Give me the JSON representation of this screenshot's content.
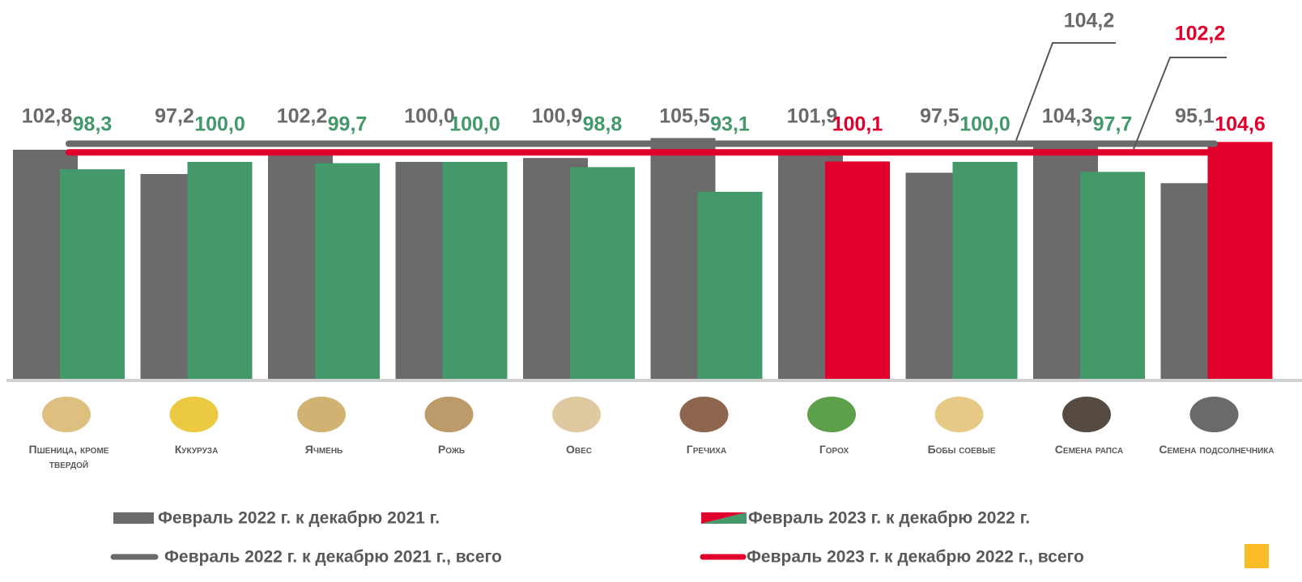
{
  "chart_data": {
    "type": "bar",
    "categories": [
      "Пшеница, кроме твердой",
      "Кукуруза",
      "Ячмень",
      "Рожь",
      "Овес",
      "Гречиха",
      "Горох",
      "Бобы соевые",
      "Семена рапса",
      "Семена подсолнечника"
    ],
    "series": [
      {
        "name": "Февраль 2022 г. к декабрю 2021 г.",
        "color": "#6b6b6b",
        "values": [
          102.8,
          97.2,
          102.2,
          100.0,
          100.9,
          105.5,
          101.9,
          97.5,
          104.3,
          95.1
        ],
        "value_labels": [
          "102,8",
          "97,2",
          "102,2",
          "100,0",
          "100,9",
          "105,5",
          "101,9",
          "97,5",
          "104,3",
          "95,1"
        ]
      },
      {
        "name": "Февраль 2023 г. к декабрю 2022 г.",
        "colors": [
          "#43996a",
          "#43996a",
          "#43996a",
          "#43996a",
          "#43996a",
          "#43996a",
          "#e0002b",
          "#43996a",
          "#43996a",
          "#e0002b"
        ],
        "values": [
          98.3,
          100.0,
          99.7,
          100.0,
          98.8,
          93.1,
          100.1,
          100.0,
          97.7,
          104.6
        ],
        "value_labels": [
          "98,3",
          "100,0",
          "99,7",
          "100,0",
          "98,8",
          "93,1",
          "100,1",
          "100,0",
          "97,7",
          "104,6"
        ]
      }
    ],
    "lines": [
      {
        "name": "Февраль 2022 г. к декабрю 2021 г., всего",
        "color": "#6b6b6b",
        "value": 104.2,
        "value_label": "104,2"
      },
      {
        "name": "Февраль 2023 г. к декабрю 2022 г., всего",
        "color": "#e0002b",
        "value": 102.2,
        "value_label": "102,2"
      }
    ],
    "ylim": [
      50,
      110
    ]
  }
}
